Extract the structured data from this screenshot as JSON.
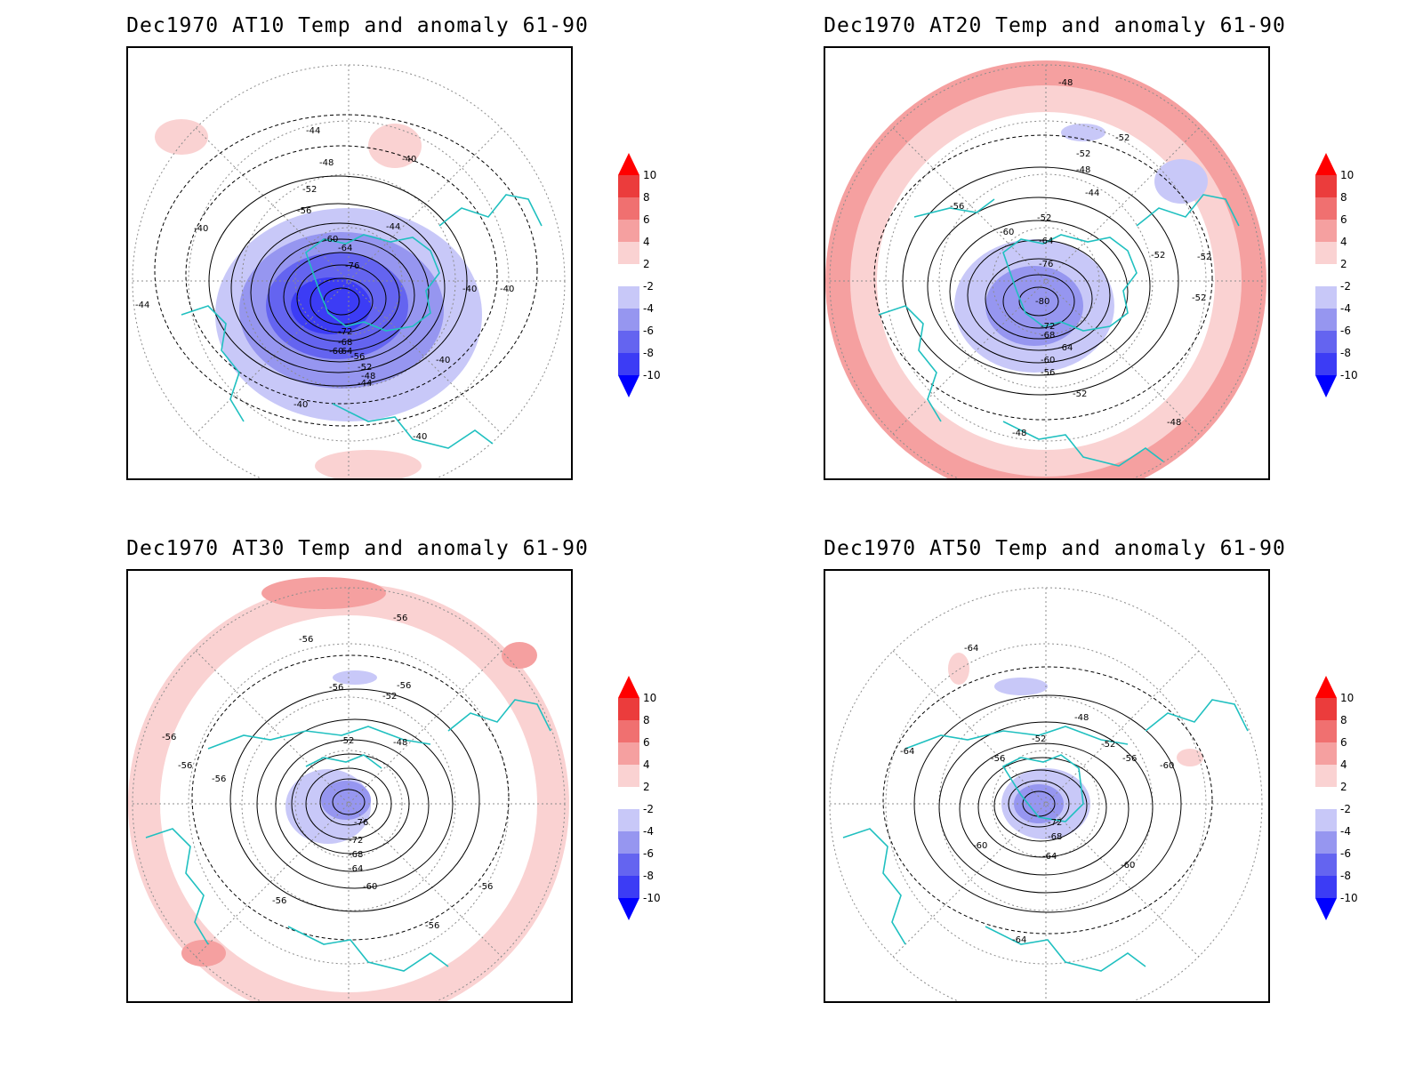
{
  "colors": {
    "coast": "#20c0c0",
    "contour": "#000000",
    "grid": "#8c8c8c",
    "anomaly_scale": [
      {
        "range": "< -10",
        "color": "#0000ff"
      },
      {
        "range": "-10 to -8",
        "color": "#3c3cf5"
      },
      {
        "range": "-8 to -6",
        "color": "#6464f0"
      },
      {
        "range": "-6 to -4",
        "color": "#9696f0"
      },
      {
        "range": "-4 to -2",
        "color": "#c8c8f8"
      },
      {
        "range": "-2 to 2",
        "color": "#ffffff"
      },
      {
        "range": "2 to 4",
        "color": "#fad2d2"
      },
      {
        "range": "4 to 6",
        "color": "#f5a0a0"
      },
      {
        "range": "6 to 8",
        "color": "#f07070"
      },
      {
        "range": "8 to 10",
        "color": "#eb3c3c"
      },
      {
        "range": "> 10",
        "color": "#ff0000"
      }
    ]
  },
  "colorbar": {
    "labels": [
      "10",
      "8",
      "6",
      "4",
      "2",
      "-2",
      "-4",
      "-6",
      "-8",
      "-10"
    ]
  },
  "panels": [
    {
      "title": "Dec1970 AT10 Temp and anomaly 61-90",
      "contour_labels": [
        "-44",
        "-40",
        "-48",
        "-52",
        "-56",
        "-60",
        "-64",
        "-76",
        "-44",
        "-40",
        "-40",
        "-40",
        "-72",
        "-68",
        "-64",
        "-60",
        "-56",
        "-52",
        "-48",
        "-44",
        "-40",
        "-40",
        "-40",
        "-44"
      ]
    },
    {
      "title": "Dec1970 AT20 Temp and anomaly 61-90",
      "contour_labels": [
        "-48",
        "-52",
        "-52",
        "-48",
        "-44",
        "-56",
        "-52",
        "-60",
        "-64",
        "-76",
        "-80",
        "-72",
        "-68",
        "-64",
        "-60",
        "-56",
        "-52",
        "-52",
        "-52",
        "-52",
        "-48",
        "-48"
      ]
    },
    {
      "title": "Dec1970 AT30 Temp and anomaly 61-90",
      "contour_labels": [
        "-56",
        "-56",
        "-56",
        "-52",
        "-56",
        "-52",
        "-48",
        "-56",
        "-56",
        "-56",
        "-76",
        "-72",
        "-68",
        "-64",
        "-60",
        "-56",
        "-56",
        "-56"
      ]
    },
    {
      "title": "Dec1970 AT50 Temp and anomaly 61-90",
      "contour_labels": [
        "-64",
        "-48",
        "-52",
        "-52",
        "-56",
        "-56",
        "-60",
        "-64",
        "-72",
        "-68",
        "-64",
        "-60",
        "-60",
        "-64"
      ]
    }
  ]
}
